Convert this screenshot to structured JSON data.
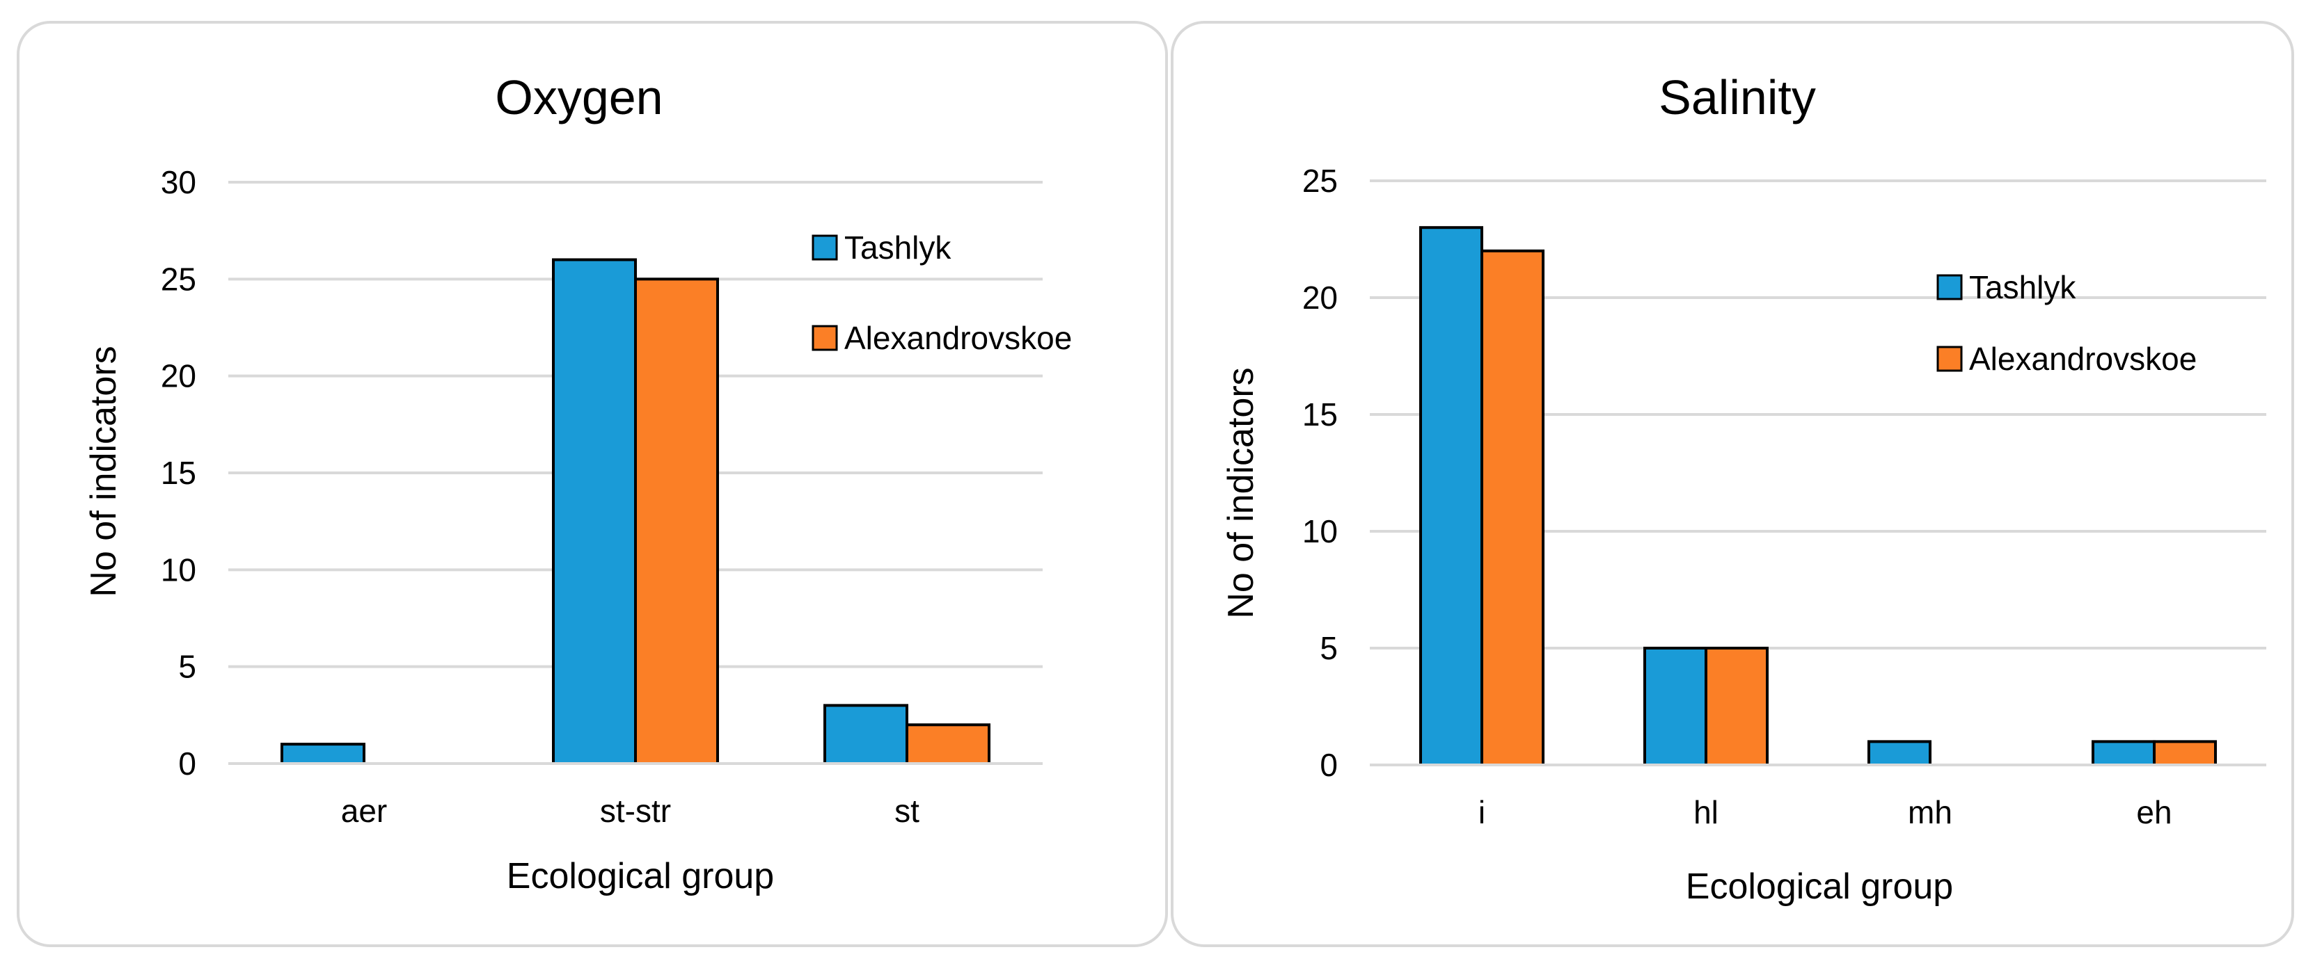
{
  "chart_data": [
    {
      "type": "bar",
      "title": "Oxygen",
      "xlabel": "Ecological group",
      "ylabel": "No of indicators",
      "categories": [
        "aer",
        "st-str",
        "st"
      ],
      "series": [
        {
          "name": "Tashlyk",
          "color": "#1a9bd7",
          "values": [
            1,
            26,
            3
          ]
        },
        {
          "name": "Alexandrovskoe",
          "color": "#fb7f26",
          "values": [
            0,
            25,
            2
          ]
        }
      ],
      "ylim": [
        0,
        30
      ],
      "yticks": [
        0,
        5,
        10,
        15,
        20,
        25,
        30
      ],
      "grid": true,
      "legend": "top-right"
    },
    {
      "type": "bar",
      "title": "Salinity",
      "xlabel": "Ecological group",
      "ylabel": "No of indicators",
      "categories": [
        "i",
        "hl",
        "mh",
        "eh"
      ],
      "series": [
        {
          "name": "Tashlyk",
          "color": "#1a9bd7",
          "values": [
            23,
            5,
            1,
            1
          ]
        },
        {
          "name": "Alexandrovskoe",
          "color": "#fb7f26",
          "values": [
            22,
            5,
            0,
            1
          ]
        }
      ],
      "ylim": [
        0,
        25
      ],
      "yticks": [
        0,
        5,
        10,
        15,
        20,
        25
      ],
      "grid": true,
      "legend": "top-right"
    }
  ]
}
